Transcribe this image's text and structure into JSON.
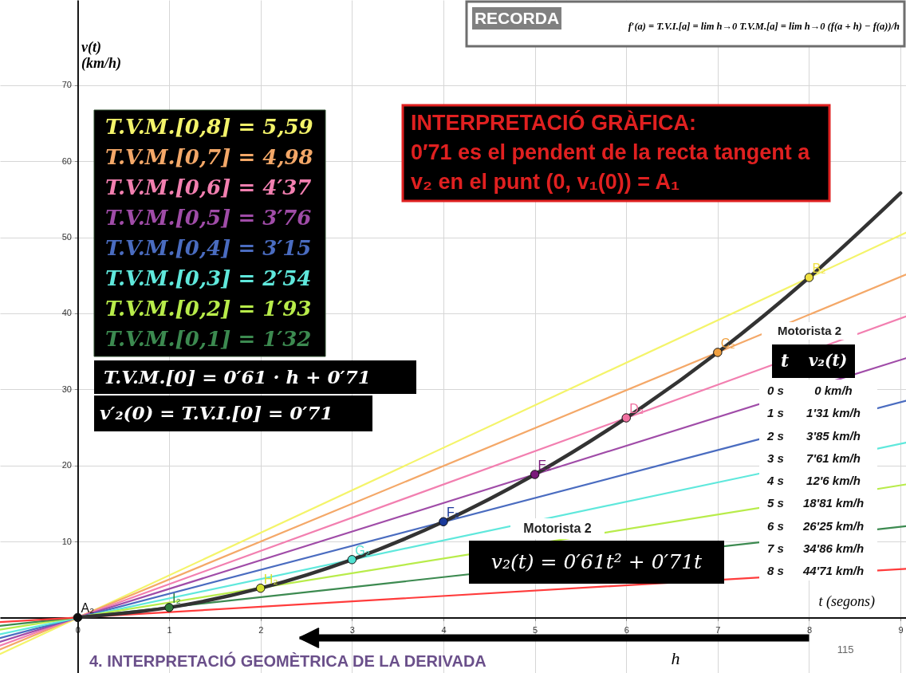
{
  "chart_data": {
    "type": "line",
    "title": "4. INTERPRETACIÓ GEOMÈTRICA DE LA DERIVADA",
    "xlabel": "t (segons)",
    "ylabel": "v(t) (km/h)",
    "xlim": [
      -0.85,
      9.06
    ],
    "ylim": [
      -7.3,
      81.2
    ],
    "xticks": [
      0,
      1,
      2,
      3,
      4,
      5,
      6,
      7,
      8,
      9
    ],
    "yticks": [
      10,
      20,
      30,
      40,
      50,
      60,
      70
    ],
    "grid": true,
    "legend": "top left",
    "line_style": "solid",
    "annotations": [
      "RECORDA",
      "f′(a) = T.V.I.[a] = lim h→0 T.V.M.[a] = lim h→0 (f(a + h) − f(a))/h",
      "INTERPRETACIÓ GRÀFICA:",
      "0′71 es el pendent de la recta tangent a",
      "v₂ en el punt (0, v₁(0)) = A₁",
      "T.V.M.[0] = 0′61 · h + 0′71",
      "v′₂(0) = T.V.I.[0] = 0′71",
      "Motorista 2",
      "t",
      "v₂(t)",
      "0 s",
      "0 km/h",
      "1 s",
      "1'31 km/h",
      "2 s",
      "3'85 km/h",
      "3 s",
      "7'61 km/h",
      "4 s",
      "12'6 km/h",
      "5 s",
      "18'81 km/h",
      "6 s",
      "26'25 km/h",
      "7 s",
      "34'86 km/h",
      "8 s",
      "44'71 km/h",
      "Motorista 2",
      "v₂(t) = 0′61t² + 0′71t",
      "115",
      "h",
      {
        "text": "A₂",
        "x": 0,
        "y": 0
      },
      {
        "text": "I₂",
        "x": 1,
        "y": 1.31
      },
      {
        "text": "H₂",
        "x": 2,
        "y": 3.85
      },
      {
        "text": "G₂",
        "x": 3,
        "y": 7.61
      },
      {
        "text": "F₂",
        "x": 4,
        "y": 12.6
      },
      {
        "text": "E₂",
        "x": 5,
        "y": 18.81
      },
      {
        "text": "D₂",
        "x": 6,
        "y": 26.25
      },
      {
        "text": "C₂",
        "x": 7,
        "y": 34.86
      },
      {
        "text": "B₂",
        "x": 8,
        "y": 44.71
      }
    ],
    "series": [
      {
        "name": "T.V.M.[0,8] = 5,59",
        "color": "#f4f46a",
        "x": [
          -0.85,
          9.06
        ],
        "values": [
          -4.8,
          50.6
        ]
      },
      {
        "name": "T.V.M.[0,7] = 4,98",
        "color": "#f4a868",
        "x": [
          -0.85,
          9.06
        ],
        "values": [
          -4.2,
          45.1
        ]
      },
      {
        "name": "T.V.M.[0,6] = 4′37",
        "color": "#f27fb0",
        "x": [
          -0.85,
          9.06
        ],
        "values": [
          -3.7,
          39.6
        ]
      },
      {
        "name": "T.V.M.[0,5] = 3′76",
        "color": "#a04ca8",
        "x": [
          -0.85,
          9.06
        ],
        "values": [
          -3.2,
          34.1
        ]
      },
      {
        "name": "T.V.M.[0,4] = 3′15",
        "color": "#4a6cc0",
        "x": [
          -0.85,
          9.06
        ],
        "values": [
          -2.7,
          28.5
        ]
      },
      {
        "name": "T.V.M.[0,3] = 2′54",
        "color": "#5fe8dc",
        "x": [
          -0.85,
          9.06
        ],
        "values": [
          -2.2,
          23.0
        ]
      },
      {
        "name": "T.V.M.[0,2] = 1′93",
        "color": "#b8ec4a",
        "x": [
          -0.85,
          9.06
        ],
        "values": [
          -1.6,
          17.5
        ]
      },
      {
        "name": "T.V.M.[0,1] = 1′32",
        "color": "#3c8a50",
        "x": [
          -0.85,
          9.06
        ],
        "values": [
          -1.1,
          12.0
        ]
      },
      {
        "color": "#ff3b3b",
        "x": [
          -0.85,
          9.06
        ],
        "values": [
          -0.6,
          6.4
        ]
      },
      {
        "color": "#333333",
        "x": [
          0,
          1,
          2,
          3,
          4,
          5,
          6,
          7,
          8,
          9
        ],
        "values": [
          0,
          1.31,
          3.85,
          7.61,
          12.6,
          18.81,
          26.25,
          34.86,
          44.71,
          55.8
        ]
      },
      {
        "type": "scatter",
        "marker": "circle",
        "x": [
          0,
          1,
          2,
          3,
          4,
          5,
          6,
          7,
          8
        ],
        "values": [
          0,
          1.31,
          3.85,
          7.61,
          12.6,
          18.81,
          26.25,
          34.86,
          44.71
        ],
        "colors": [
          "#111111",
          "#2e7d3c",
          "#d4e030",
          "#50e0d0",
          "#1a3a9a",
          "#7a1a7a",
          "#f070a0",
          "#f0a040",
          "#f0e040"
        ]
      }
    ]
  }
}
